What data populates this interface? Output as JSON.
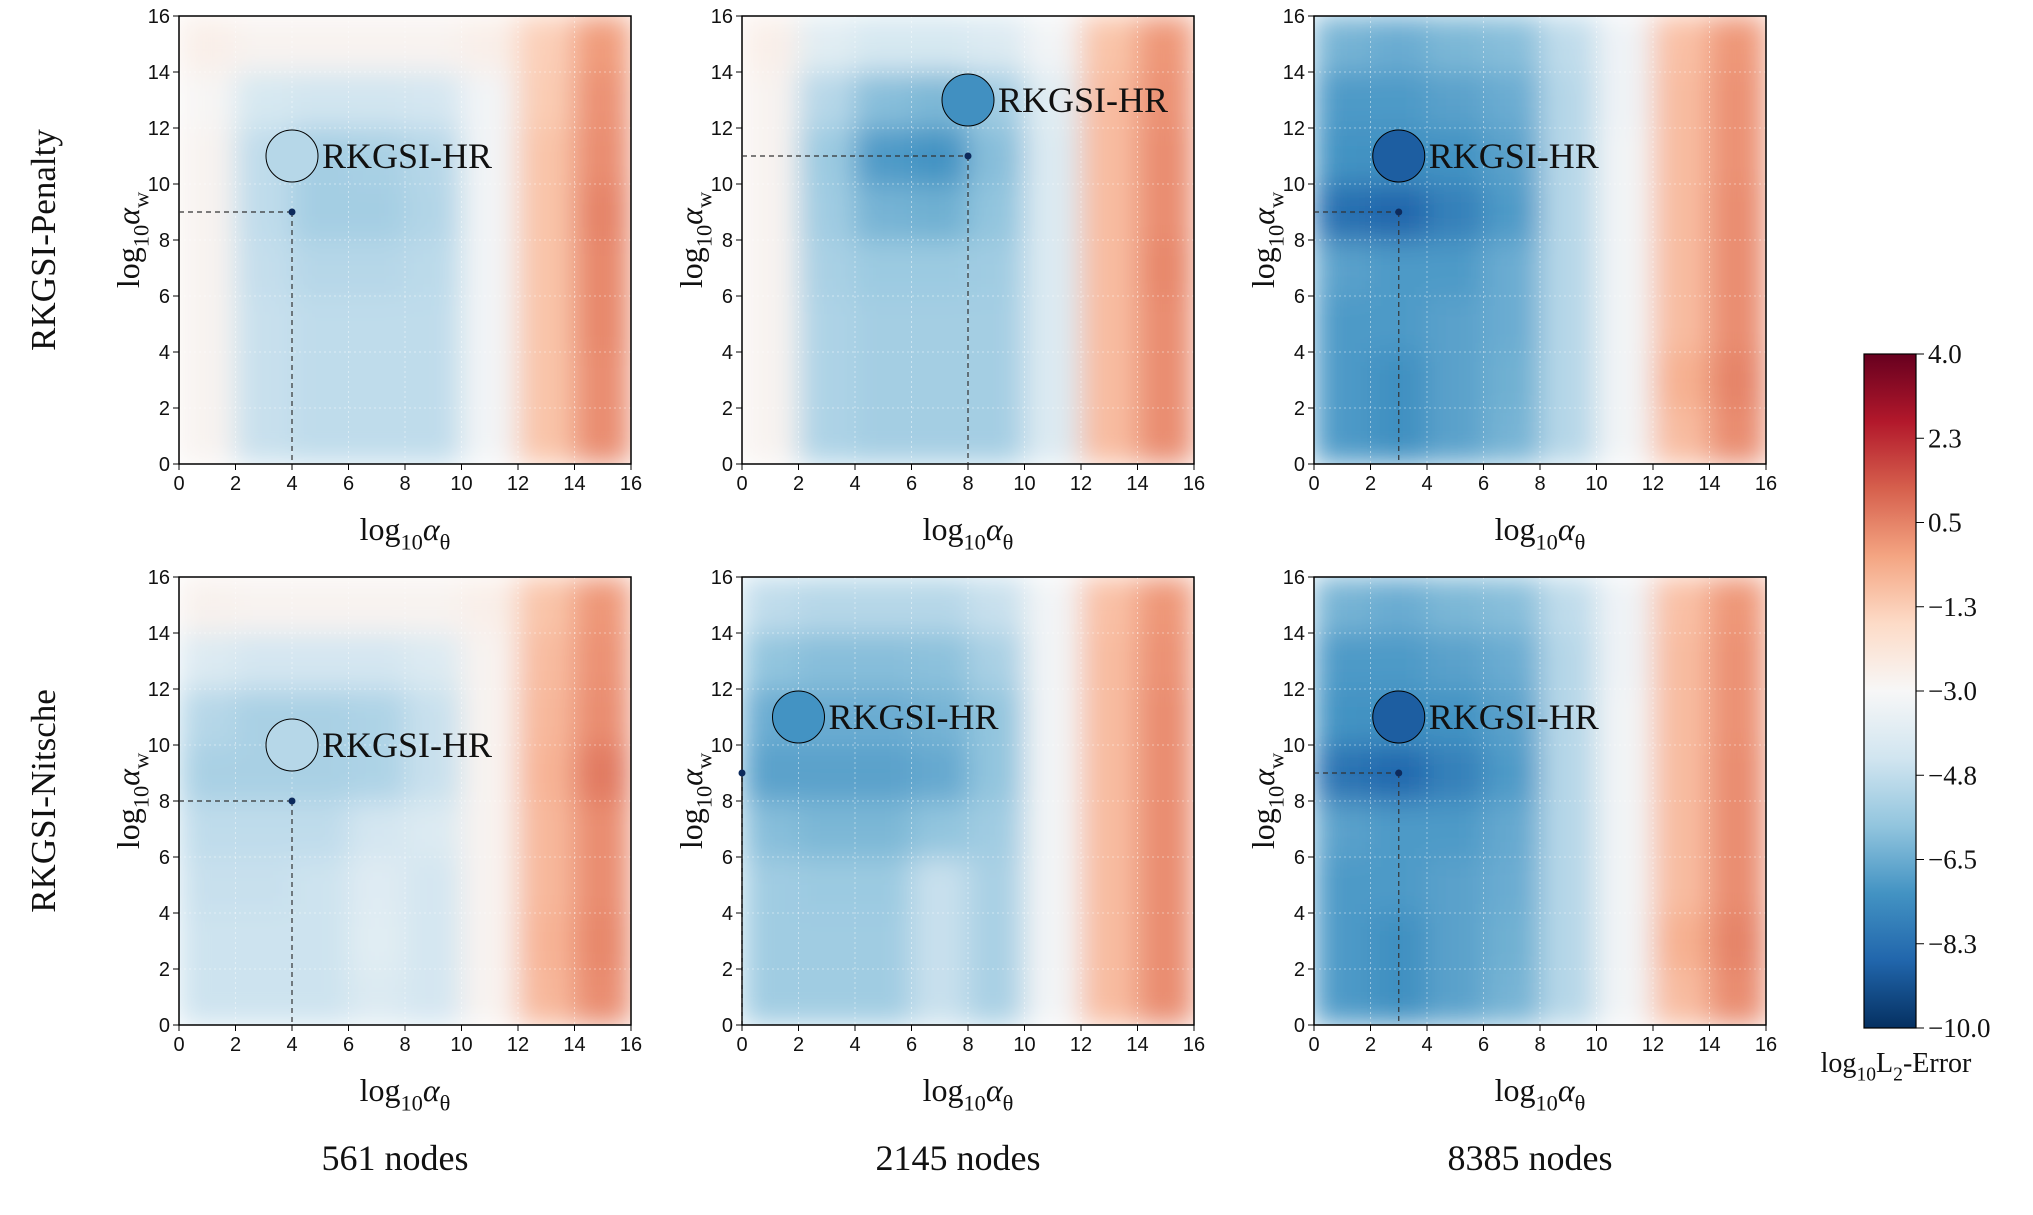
{
  "figure": {
    "row_labels": [
      "RKGSI-Penalty",
      "RKGSI-Nitsche"
    ],
    "column_labels": [
      "561 nodes",
      "2145 nodes",
      "8385 nodes"
    ],
    "optimum_color": "#0d2a5c",
    "grid": true
  },
  "colorbar": {
    "label": [
      "log",
      "10",
      "L",
      "2",
      "-Error"
    ],
    "lim": [
      -10,
      4
    ],
    "ticks": [
      {
        "value": 4,
        "label": "4.0"
      },
      {
        "value": 2.25,
        "label": "2.3"
      },
      {
        "value": 0.5,
        "label": "0.5"
      },
      {
        "value": -1.25,
        "label": "−1.3"
      },
      {
        "value": -3,
        "label": "−3.0"
      },
      {
        "value": -4.75,
        "label": "−4.8"
      },
      {
        "value": -6.5,
        "label": "−6.5"
      },
      {
        "value": -8.25,
        "label": "−8.3"
      },
      {
        "value": -10,
        "label": "−10.0"
      }
    ],
    "colors": [
      "#053061",
      "#2166ac",
      "#4393c3",
      "#92c5de",
      "#d1e5f0",
      "#f7f7f7",
      "#fddbc7",
      "#f4a582",
      "#d6604d",
      "#b2182b",
      "#67001f"
    ]
  },
  "chart_data": [
    {
      "type": "contour",
      "x_label": [
        "log",
        "10",
        "α",
        "θ"
      ],
      "y_label": [
        "log",
        "10",
        "α",
        "w"
      ],
      "xlim": [
        0,
        16
      ],
      "ylim": [
        0,
        16
      ],
      "xticks": [
        0,
        2,
        4,
        6,
        8,
        10,
        12,
        14,
        16
      ],
      "yticks": [
        0,
        2,
        4,
        6,
        8,
        10,
        12,
        14,
        16
      ],
      "x_edges": [
        0,
        2,
        4,
        6,
        8,
        10,
        12,
        14,
        16
      ],
      "y_edges": [
        0,
        2,
        4,
        6,
        8,
        10,
        12,
        14,
        16
      ],
      "z": [
        [
          -2.8,
          -4.6,
          -4.8,
          -4.8,
          -4.8,
          -3.2,
          -1.0,
          0.3
        ],
        [
          -2.8,
          -4.6,
          -4.8,
          -4.8,
          -4.8,
          -3.2,
          -1.0,
          0.3
        ],
        [
          -2.8,
          -4.6,
          -4.8,
          -4.8,
          -4.8,
          -3.2,
          -1.0,
          0.4
        ],
        [
          -2.8,
          -4.7,
          -5.0,
          -5.0,
          -4.9,
          -3.2,
          -1.0,
          0.4
        ],
        [
          -2.8,
          -4.8,
          -5.4,
          -5.4,
          -5.1,
          -3.2,
          -1.0,
          0.5
        ],
        [
          -2.8,
          -4.8,
          -5.4,
          -5.3,
          -5.0,
          -3.2,
          -1.0,
          0.3
        ],
        [
          -2.9,
          -4.2,
          -4.4,
          -4.4,
          -4.3,
          -3.2,
          -1.2,
          0.2
        ],
        [
          -2.6,
          -2.8,
          -2.8,
          -2.8,
          -2.8,
          -2.6,
          -1.3,
          0.0
        ]
      ],
      "optimum": {
        "x": 4,
        "y": 9
      },
      "highlight": {
        "label": "RKGSI-HR",
        "x": 4,
        "y": 11,
        "value": -5.0
      }
    },
    {
      "type": "contour",
      "x_label": [
        "log",
        "10",
        "α",
        "θ"
      ],
      "y_label": [
        "log",
        "10",
        "α",
        "w"
      ],
      "xlim": [
        0,
        16
      ],
      "ylim": [
        0,
        16
      ],
      "xticks": [
        0,
        2,
        4,
        6,
        8,
        10,
        12,
        14,
        16
      ],
      "yticks": [
        0,
        2,
        4,
        6,
        8,
        10,
        12,
        14,
        16
      ],
      "x_edges": [
        0,
        2,
        4,
        6,
        8,
        10,
        12,
        14,
        16
      ],
      "y_edges": [
        0,
        2,
        4,
        6,
        8,
        10,
        12,
        14,
        16
      ],
      "z": [
        [
          -2.8,
          -5.2,
          -5.4,
          -5.4,
          -5.4,
          -4.0,
          -0.8,
          0.3
        ],
        [
          -2.8,
          -5.2,
          -5.4,
          -5.4,
          -5.4,
          -4.0,
          -0.8,
          0.3
        ],
        [
          -2.8,
          -5.2,
          -5.4,
          -5.4,
          -5.4,
          -4.0,
          -0.8,
          0.3
        ],
        [
          -2.8,
          -5.3,
          -5.6,
          -5.6,
          -5.5,
          -4.0,
          -0.8,
          0.4
        ],
        [
          -2.8,
          -5.5,
          -6.3,
          -6.4,
          -5.8,
          -4.0,
          -0.8,
          0.3
        ],
        [
          -2.8,
          -5.6,
          -7.0,
          -7.2,
          -6.0,
          -4.0,
          -0.8,
          0.3
        ],
        [
          -2.8,
          -5.0,
          -6.0,
          -6.2,
          -5.5,
          -3.8,
          -0.8,
          0.2
        ],
        [
          -2.6,
          -3.8,
          -4.2,
          -4.2,
          -4.0,
          -3.2,
          -1.0,
          0.1
        ]
      ],
      "optimum": {
        "x": 8,
        "y": 11
      },
      "highlight": {
        "label": "RKGSI-HR",
        "x": 8,
        "y": 13,
        "value": -7.3
      }
    },
    {
      "type": "contour",
      "x_label": [
        "log",
        "10",
        "α",
        "θ"
      ],
      "y_label": [
        "log",
        "10",
        "α",
        "w"
      ],
      "xlim": [
        0,
        16
      ],
      "ylim": [
        0,
        16
      ],
      "xticks": [
        0,
        2,
        4,
        6,
        8,
        10,
        12,
        14,
        16
      ],
      "yticks": [
        0,
        2,
        4,
        6,
        8,
        10,
        12,
        14,
        16
      ],
      "x_edges": [
        0,
        2,
        4,
        6,
        8,
        10,
        12,
        14,
        16
      ],
      "y_edges": [
        0,
        2,
        4,
        6,
        8,
        10,
        12,
        14,
        16
      ],
      "z": [
        [
          -7.0,
          -7.3,
          -6.8,
          -6.3,
          -5.0,
          -3.2,
          -0.8,
          0.3
        ],
        [
          -7.0,
          -7.3,
          -6.8,
          -6.4,
          -5.0,
          -3.2,
          -0.5,
          0.5
        ],
        [
          -7.0,
          -7.0,
          -6.8,
          -6.5,
          -5.0,
          -3.2,
          -0.8,
          0.3
        ],
        [
          -6.8,
          -7.0,
          -7.0,
          -6.5,
          -5.0,
          -3.2,
          -0.8,
          0.3
        ],
        [
          -8.3,
          -8.6,
          -7.8,
          -7.0,
          -5.0,
          -3.2,
          -0.8,
          0.3
        ],
        [
          -7.2,
          -7.3,
          -7.2,
          -6.8,
          -5.0,
          -3.2,
          -0.8,
          0.2
        ],
        [
          -7.0,
          -7.0,
          -6.8,
          -6.5,
          -5.0,
          -3.3,
          -0.8,
          0.2
        ],
        [
          -6.3,
          -6.5,
          -6.2,
          -6.0,
          -4.8,
          -3.3,
          -0.9,
          0.1
        ]
      ],
      "optimum": {
        "x": 3,
        "y": 9
      },
      "highlight": {
        "label": "RKGSI-HR",
        "x": 3,
        "y": 11,
        "value": -8.8
      }
    },
    {
      "type": "contour",
      "x_label": [
        "log",
        "10",
        "α",
        "θ"
      ],
      "y_label": [
        "log",
        "10",
        "α",
        "w"
      ],
      "xlim": [
        0,
        16
      ],
      "ylim": [
        0,
        16
      ],
      "xticks": [
        0,
        2,
        4,
        6,
        8,
        10,
        12,
        14,
        16
      ],
      "yticks": [
        0,
        2,
        4,
        6,
        8,
        10,
        12,
        14,
        16
      ],
      "x_edges": [
        0,
        2,
        4,
        6,
        8,
        10,
        12,
        14,
        16
      ],
      "y_edges": [
        0,
        2,
        4,
        6,
        8,
        10,
        12,
        14,
        16
      ],
      "z": [
        [
          -4.5,
          -4.5,
          -4.5,
          -4.0,
          -4.3,
          -2.8,
          -0.7,
          0.3
        ],
        [
          -4.5,
          -4.5,
          -4.5,
          -3.8,
          -4.3,
          -2.8,
          -0.6,
          0.4
        ],
        [
          -4.6,
          -4.6,
          -4.5,
          -3.9,
          -4.3,
          -2.8,
          -0.7,
          0.3
        ],
        [
          -4.8,
          -4.8,
          -4.8,
          -4.3,
          -4.0,
          -2.8,
          -0.7,
          0.3
        ],
        [
          -5.3,
          -5.3,
          -5.3,
          -5.2,
          -4.6,
          -2.8,
          -0.6,
          0.7
        ],
        [
          -5.0,
          -5.3,
          -5.3,
          -5.2,
          -4.6,
          -2.8,
          -0.7,
          0.3
        ],
        [
          -4.0,
          -4.3,
          -4.3,
          -4.3,
          -4.0,
          -2.8,
          -0.8,
          0.2
        ],
        [
          -2.7,
          -2.8,
          -2.8,
          -2.8,
          -2.8,
          -2.6,
          -1.0,
          0.1
        ]
      ],
      "optimum": {
        "x": 4,
        "y": 8
      },
      "highlight": {
        "label": "RKGSI-HR",
        "x": 4,
        "y": 10,
        "value": -5.0
      }
    },
    {
      "type": "contour",
      "x_label": [
        "log",
        "10",
        "α",
        "θ"
      ],
      "y_label": [
        "log",
        "10",
        "α",
        "w"
      ],
      "xlim": [
        0,
        16
      ],
      "ylim": [
        0,
        16
      ],
      "xticks": [
        0,
        2,
        4,
        6,
        8,
        10,
        12,
        14,
        16
      ],
      "yticks": [
        0,
        2,
        4,
        6,
        8,
        10,
        12,
        14,
        16
      ],
      "x_edges": [
        0,
        2,
        4,
        6,
        8,
        10,
        12,
        14,
        16
      ],
      "y_edges": [
        0,
        2,
        4,
        6,
        8,
        10,
        12,
        14,
        16
      ],
      "z": [
        [
          -5.5,
          -5.5,
          -5.5,
          -4.6,
          -5.3,
          -3.2,
          -0.8,
          0.3
        ],
        [
          -5.5,
          -5.5,
          -5.5,
          -4.6,
          -5.3,
          -3.2,
          -0.8,
          0.3
        ],
        [
          -5.5,
          -5.6,
          -5.6,
          -4.6,
          -5.3,
          -3.2,
          -0.8,
          0.3
        ],
        [
          -6.0,
          -6.2,
          -6.2,
          -5.8,
          -5.5,
          -3.2,
          -0.8,
          0.3
        ],
        [
          -6.8,
          -6.8,
          -6.8,
          -6.6,
          -5.8,
          -3.2,
          -0.8,
          0.3
        ],
        [
          -6.5,
          -6.5,
          -6.5,
          -6.3,
          -5.8,
          -3.2,
          -0.8,
          0.3
        ],
        [
          -5.8,
          -6.0,
          -6.0,
          -5.9,
          -5.3,
          -3.2,
          -0.8,
          0.2
        ],
        [
          -4.8,
          -5.0,
          -5.0,
          -5.0,
          -4.6,
          -3.2,
          -0.9,
          0.1
        ]
      ],
      "optimum": {
        "x": 0,
        "y": 9
      },
      "highlight": {
        "label": "RKGSI-HR",
        "x": 2,
        "y": 11,
        "value": -7.2
      }
    },
    {
      "type": "contour",
      "x_label": [
        "log",
        "10",
        "α",
        "θ"
      ],
      "y_label": [
        "log",
        "10",
        "α",
        "w"
      ],
      "xlim": [
        0,
        16
      ],
      "ylim": [
        0,
        16
      ],
      "xticks": [
        0,
        2,
        4,
        6,
        8,
        10,
        12,
        14,
        16
      ],
      "yticks": [
        0,
        2,
        4,
        6,
        8,
        10,
        12,
        14,
        16
      ],
      "x_edges": [
        0,
        2,
        4,
        6,
        8,
        10,
        12,
        14,
        16
      ],
      "y_edges": [
        0,
        2,
        4,
        6,
        8,
        10,
        12,
        14,
        16
      ],
      "z": [
        [
          -7.0,
          -7.3,
          -6.8,
          -6.3,
          -5.0,
          -3.2,
          -0.8,
          0.3
        ],
        [
          -7.0,
          -7.3,
          -6.8,
          -6.4,
          -5.0,
          -3.2,
          -0.5,
          0.5
        ],
        [
          -7.0,
          -7.0,
          -6.8,
          -6.5,
          -5.0,
          -3.2,
          -0.8,
          0.3
        ],
        [
          -6.8,
          -7.0,
          -7.0,
          -6.6,
          -5.0,
          -3.2,
          -0.8,
          0.3
        ],
        [
          -8.2,
          -8.5,
          -7.8,
          -7.0,
          -5.0,
          -3.2,
          -0.8,
          0.3
        ],
        [
          -7.2,
          -7.3,
          -7.2,
          -6.8,
          -5.0,
          -3.2,
          -0.8,
          0.2
        ],
        [
          -7.0,
          -7.0,
          -6.8,
          -6.5,
          -5.0,
          -3.3,
          -0.8,
          0.2
        ],
        [
          -6.3,
          -6.5,
          -6.2,
          -6.0,
          -4.8,
          -3.3,
          -0.9,
          0.1
        ]
      ],
      "optimum": {
        "x": 3,
        "y": 9
      },
      "highlight": {
        "label": "RKGSI-HR",
        "x": 3,
        "y": 11,
        "value": -8.8
      }
    }
  ]
}
